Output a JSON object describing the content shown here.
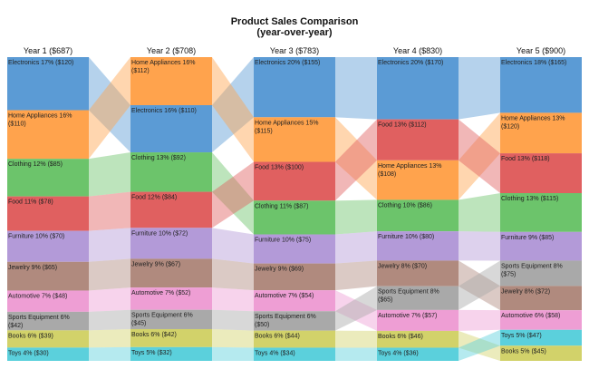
{
  "chart_data": {
    "type": "ribbon-bump",
    "title": "Product Sales Comparison",
    "subtitle": "(year-over-year)",
    "categories": [
      "Electronics",
      "Home Appliances",
      "Clothing",
      "Food",
      "Furniture",
      "Jewelry",
      "Automotive",
      "Sports Equipment",
      "Books",
      "Toys"
    ],
    "colors": {
      "Electronics": "#5b9bd5",
      "Home Appliances": "#ffa34d",
      "Clothing": "#6cc46b",
      "Food": "#e06060",
      "Furniture": "#b39ad8",
      "Jewelry": "#b08a7e",
      "Automotive": "#ee9ed4",
      "Sports Equipment": "#a9a9a9",
      "Books": "#d2d26a",
      "Toys": "#5bd0dc"
    },
    "years": [
      {
        "label": "Year 1 ($687)",
        "segments": [
          {
            "category": "Electronics",
            "label": "Electronics 17% ($120)",
            "value": 120
          },
          {
            "category": "Home Appliances",
            "label": "Home Appliances 16% ($110)",
            "value": 110
          },
          {
            "category": "Clothing",
            "label": "Clothing 12% ($85)",
            "value": 85
          },
          {
            "category": "Food",
            "label": "Food 11% ($78)",
            "value": 78
          },
          {
            "category": "Furniture",
            "label": "Furniture 10% ($70)",
            "value": 70
          },
          {
            "category": "Jewelry",
            "label": "Jewelry 9% ($65)",
            "value": 65
          },
          {
            "category": "Automotive",
            "label": "Automotive 7% ($48)",
            "value": 48
          },
          {
            "category": "Sports Equipment",
            "label": "Sports Equipment 6% ($42)",
            "value": 42
          },
          {
            "category": "Books",
            "label": "Books 6% ($39)",
            "value": 39
          },
          {
            "category": "Toys",
            "label": "Toys 4% ($30)",
            "value": 30
          }
        ]
      },
      {
        "label": "Year 2 ($708)",
        "segments": [
          {
            "category": "Home Appliances",
            "label": "Home Appliances 16% ($112)",
            "value": 112
          },
          {
            "category": "Electronics",
            "label": "Electronics 16% ($110)",
            "value": 110
          },
          {
            "category": "Clothing",
            "label": "Clothing 13% ($92)",
            "value": 92
          },
          {
            "category": "Food",
            "label": "Food 12% ($84)",
            "value": 84
          },
          {
            "category": "Furniture",
            "label": "Furniture 10% ($72)",
            "value": 72
          },
          {
            "category": "Jewelry",
            "label": "Jewelry 9% ($67)",
            "value": 67
          },
          {
            "category": "Automotive",
            "label": "Automotive 7% ($52)",
            "value": 52
          },
          {
            "category": "Sports Equipment",
            "label": "Sports Equipment 6% ($45)",
            "value": 45
          },
          {
            "category": "Books",
            "label": "Books 6% ($42)",
            "value": 42
          },
          {
            "category": "Toys",
            "label": "Toys 5% ($32)",
            "value": 32
          }
        ]
      },
      {
        "label": "Year 3 ($783)",
        "segments": [
          {
            "category": "Electronics",
            "label": "Electronics 20% ($155)",
            "value": 155
          },
          {
            "category": "Home Appliances",
            "label": "Home Appliances 15% ($115)",
            "value": 115
          },
          {
            "category": "Food",
            "label": "Food 13% ($100)",
            "value": 100
          },
          {
            "category": "Clothing",
            "label": "Clothing 11% ($87)",
            "value": 87
          },
          {
            "category": "Furniture",
            "label": "Furniture 10% ($75)",
            "value": 75
          },
          {
            "category": "Jewelry",
            "label": "Jewelry 9% ($69)",
            "value": 69
          },
          {
            "category": "Automotive",
            "label": "Automotive 7% ($54)",
            "value": 54
          },
          {
            "category": "Sports Equipment",
            "label": "Sports Equipment 6% ($50)",
            "value": 50
          },
          {
            "category": "Books",
            "label": "Books 6% ($44)",
            "value": 44
          },
          {
            "category": "Toys",
            "label": "Toys 4% ($34)",
            "value": 34
          }
        ]
      },
      {
        "label": "Year 4 ($830)",
        "segments": [
          {
            "category": "Electronics",
            "label": "Electronics 20% ($170)",
            "value": 170
          },
          {
            "category": "Food",
            "label": "Food 13% ($112)",
            "value": 112
          },
          {
            "category": "Home Appliances",
            "label": "Home Appliances 13% ($108)",
            "value": 108
          },
          {
            "category": "Clothing",
            "label": "Clothing 10% ($86)",
            "value": 86
          },
          {
            "category": "Furniture",
            "label": "Furniture 10% ($80)",
            "value": 80
          },
          {
            "category": "Jewelry",
            "label": "Jewelry 8% ($70)",
            "value": 70
          },
          {
            "category": "Sports Equipment",
            "label": "Sports Equipment 8% ($65)",
            "value": 65
          },
          {
            "category": "Automotive",
            "label": "Automotive 7% ($57)",
            "value": 57
          },
          {
            "category": "Books",
            "label": "Books 6% ($46)",
            "value": 46
          },
          {
            "category": "Toys",
            "label": "Toys 4% ($36)",
            "value": 36
          }
        ]
      },
      {
        "label": "Year 5 ($900)",
        "segments": [
          {
            "category": "Electronics",
            "label": "Electronics 18% ($165)",
            "value": 165
          },
          {
            "category": "Home Appliances",
            "label": "Home Appliances 13% ($120)",
            "value": 120
          },
          {
            "category": "Food",
            "label": "Food 13% ($118)",
            "value": 118
          },
          {
            "category": "Clothing",
            "label": "Clothing 13% ($115)",
            "value": 115
          },
          {
            "category": "Furniture",
            "label": "Furniture 9% ($85)",
            "value": 85
          },
          {
            "category": "Sports Equipment",
            "label": "Sports Equipment 8% ($75)",
            "value": 75
          },
          {
            "category": "Jewelry",
            "label": "Jewelry 8% ($72)",
            "value": 72
          },
          {
            "category": "Automotive",
            "label": "Automotive 6% ($58)",
            "value": 58
          },
          {
            "category": "Toys",
            "label": "Toys 5% ($47)",
            "value": 47
          },
          {
            "category": "Books",
            "label": "Books 5% ($45)",
            "value": 45
          }
        ]
      }
    ]
  }
}
